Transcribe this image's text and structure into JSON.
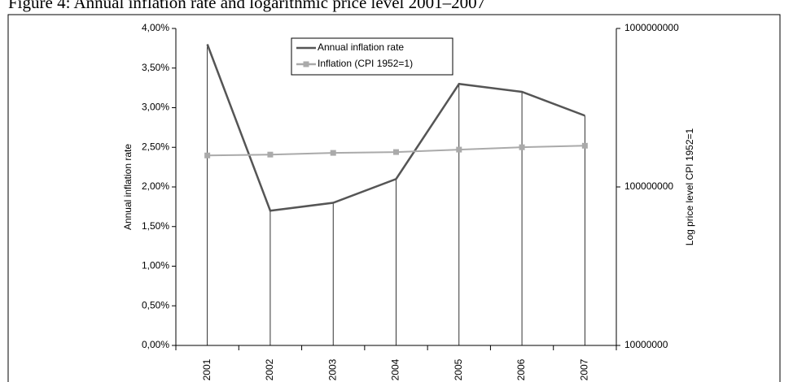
{
  "chart_data": {
    "type": "line",
    "title": "Figure 4: Annual inflation rate and logarithmic price level 2001–2007",
    "categories": [
      "2001",
      "2002",
      "2003",
      "2004",
      "2005",
      "2006",
      "2007"
    ],
    "series": [
      {
        "name": "Annual inflation rate",
        "color": "#555555",
        "values": [
          3.8,
          1.7,
          1.8,
          2.1,
          3.3,
          3.2,
          2.9
        ],
        "drop_lines": true
      },
      {
        "name": "Inflation (CPI 1952=1)",
        "color": "#aaaaaa",
        "axis": "y2",
        "marker": "square",
        "values": [
          158000000,
          160000000,
          164000000,
          166000000,
          172000000,
          178000000,
          182000000
        ]
      }
    ],
    "ylabel": "Annual inflation rate",
    "y2label": "Log price level CPI 1952=1",
    "ylim": [
      0,
      4
    ],
    "yticks": [
      {
        "value": 0,
        "label": "0,00%"
      },
      {
        "value": 0.5,
        "label": "0,50%"
      },
      {
        "value": 1,
        "label": "1,00%"
      },
      {
        "value": 1.5,
        "label": "1,50%"
      },
      {
        "value": 2,
        "label": "2,00%"
      },
      {
        "value": 2.5,
        "label": "2,50%"
      },
      {
        "value": 3,
        "label": "3,00%"
      },
      {
        "value": 3.5,
        "label": "3,50%"
      },
      {
        "value": 4,
        "label": "4,00%"
      }
    ],
    "y2lim": [
      10000000,
      1000000000
    ],
    "y2ticks": [
      10000000,
      100000000,
      1000000000
    ],
    "y2log": true,
    "legend": "top"
  }
}
